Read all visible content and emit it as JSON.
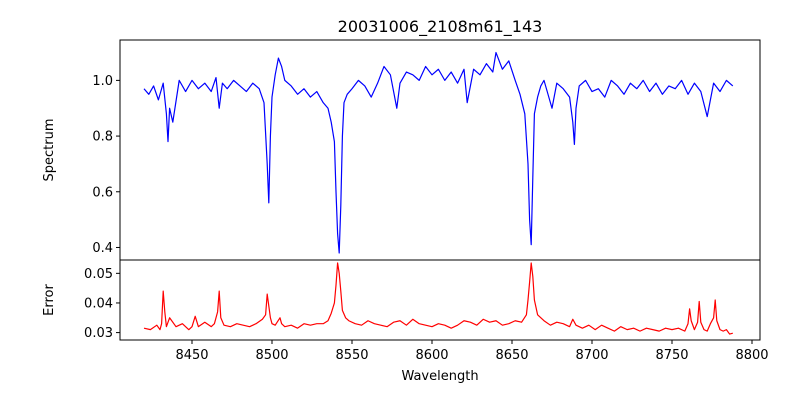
{
  "chart_data": [
    {
      "type": "line",
      "title": "20031006_2108m61_143",
      "ylabel": "Spectrum",
      "xlim": [
        8405,
        8805
      ],
      "ylim": [
        0.355,
        1.145
      ],
      "yticks": [
        0.4,
        0.6,
        0.8,
        1.0
      ],
      "yticklabels": [
        "0.4",
        "0.6",
        "0.8",
        "1.0"
      ],
      "grid": false,
      "series": [
        {
          "color": "#0000ff",
          "x": [
            8420,
            8423,
            8426,
            8429,
            8432,
            8434,
            8435,
            8436,
            8438,
            8442,
            8446,
            8450,
            8454,
            8458,
            8462,
            8465,
            8467,
            8469,
            8472,
            8476,
            8480,
            8484,
            8488,
            8492,
            8495,
            8497,
            8498,
            8499,
            8500,
            8502,
            8504,
            8506,
            8508,
            8512,
            8516,
            8520,
            8524,
            8528,
            8532,
            8535,
            8537,
            8539,
            8540,
            8541,
            8542,
            8543,
            8544,
            8545,
            8547,
            8550,
            8554,
            8558,
            8562,
            8566,
            8570,
            8574,
            8578,
            8580,
            8584,
            8588,
            8592,
            8596,
            8600,
            8604,
            8608,
            8612,
            8616,
            8620,
            8622,
            8626,
            8630,
            8634,
            8638,
            8640,
            8644,
            8648,
            8652,
            8655,
            8658,
            8660,
            8661,
            8662,
            8663,
            8664,
            8666,
            8668,
            8670,
            8672,
            8675,
            8678,
            8682,
            8686,
            8688,
            8689,
            8690,
            8692,
            8696,
            8700,
            8704,
            8708,
            8712,
            8716,
            8720,
            8724,
            8728,
            8732,
            8736,
            8740,
            8744,
            8748,
            8752,
            8756,
            8760,
            8764,
            8768,
            8772,
            8776,
            8780,
            8784,
            8788
          ],
          "y": [
            0.97,
            0.95,
            0.98,
            0.93,
            0.99,
            0.88,
            0.78,
            0.9,
            0.85,
            1.0,
            0.96,
            1.0,
            0.97,
            0.99,
            0.96,
            1.01,
            0.9,
            0.99,
            0.97,
            1.0,
            0.98,
            0.96,
            0.99,
            0.97,
            0.92,
            0.7,
            0.56,
            0.8,
            0.94,
            1.02,
            1.08,
            1.05,
            1.0,
            0.98,
            0.95,
            0.97,
            0.94,
            0.96,
            0.92,
            0.9,
            0.85,
            0.78,
            0.6,
            0.45,
            0.38,
            0.55,
            0.8,
            0.92,
            0.95,
            0.97,
            1.0,
            0.98,
            0.94,
            0.99,
            1.05,
            1.02,
            0.9,
            0.99,
            1.03,
            1.02,
            1.0,
            1.05,
            1.02,
            1.04,
            1.0,
            1.03,
            0.99,
            1.04,
            0.92,
            1.04,
            1.02,
            1.06,
            1.03,
            1.1,
            1.04,
            1.07,
            1.0,
            0.95,
            0.88,
            0.7,
            0.5,
            0.41,
            0.65,
            0.88,
            0.94,
            0.98,
            1.0,
            0.96,
            0.9,
            0.99,
            0.97,
            0.94,
            0.85,
            0.77,
            0.9,
            0.98,
            1.0,
            0.96,
            0.97,
            0.94,
            1.0,
            0.98,
            0.95,
            0.99,
            0.97,
            1.0,
            0.96,
            0.99,
            0.95,
            0.98,
            0.97,
            1.0,
            0.95,
            0.99,
            0.96,
            0.87,
            0.99,
            0.96,
            1.0,
            0.98
          ]
        }
      ]
    },
    {
      "type": "line",
      "xlabel": "Wavelength",
      "ylabel": "Error",
      "xlim": [
        8405,
        8805
      ],
      "ylim": [
        0.0275,
        0.0545
      ],
      "xticks": [
        8450,
        8500,
        8550,
        8600,
        8650,
        8700,
        8750,
        8800
      ],
      "xticklabels": [
        "8450",
        "8500",
        "8550",
        "8600",
        "8650",
        "8700",
        "8750",
        "8800"
      ],
      "yticks": [
        0.03,
        0.04,
        0.05
      ],
      "yticklabels": [
        "0.03",
        "0.04",
        "0.05"
      ],
      "grid": false,
      "series": [
        {
          "color": "#ff0000",
          "x": [
            8420,
            8424,
            8428,
            8430,
            8431,
            8432,
            8433,
            8434,
            8436,
            8440,
            8444,
            8448,
            8450,
            8452,
            8454,
            8458,
            8462,
            8464,
            8466,
            8467,
            8468,
            8470,
            8474,
            8478,
            8482,
            8486,
            8490,
            8494,
            8496,
            8497,
            8498,
            8499,
            8500,
            8502,
            8505,
            8506,
            8508,
            8512,
            8516,
            8520,
            8524,
            8528,
            8532,
            8535,
            8537,
            8539,
            8540,
            8541,
            8542,
            8543,
            8544,
            8546,
            8548,
            8552,
            8556,
            8560,
            8564,
            8568,
            8572,
            8576,
            8580,
            8584,
            8588,
            8592,
            8596,
            8600,
            8604,
            8608,
            8612,
            8616,
            8620,
            8624,
            8628,
            8632,
            8636,
            8640,
            8644,
            8648,
            8652,
            8656,
            8659,
            8660,
            8661,
            8662,
            8663,
            8664,
            8666,
            8670,
            8674,
            8678,
            8682,
            8686,
            8688,
            8690,
            8694,
            8698,
            8702,
            8706,
            8710,
            8714,
            8718,
            8722,
            8726,
            8730,
            8734,
            8738,
            8742,
            8746,
            8750,
            8754,
            8758,
            8760,
            8761,
            8762,
            8764,
            8766,
            8767,
            8768,
            8770,
            8772,
            8774,
            8776,
            8777,
            8778,
            8780,
            8782,
            8784,
            8786,
            8788
          ],
          "y": [
            0.0315,
            0.031,
            0.0325,
            0.031,
            0.033,
            0.044,
            0.037,
            0.032,
            0.035,
            0.032,
            0.033,
            0.031,
            0.032,
            0.0355,
            0.032,
            0.0335,
            0.032,
            0.033,
            0.037,
            0.044,
            0.035,
            0.0325,
            0.032,
            0.033,
            0.0325,
            0.032,
            0.033,
            0.0345,
            0.036,
            0.043,
            0.039,
            0.035,
            0.033,
            0.0325,
            0.035,
            0.033,
            0.032,
            0.0325,
            0.0315,
            0.033,
            0.0325,
            0.033,
            0.033,
            0.034,
            0.0365,
            0.04,
            0.046,
            0.0535,
            0.05,
            0.044,
            0.0375,
            0.035,
            0.034,
            0.033,
            0.0325,
            0.034,
            0.033,
            0.0325,
            0.032,
            0.0335,
            0.034,
            0.0325,
            0.0345,
            0.033,
            0.0325,
            0.032,
            0.033,
            0.0325,
            0.0315,
            0.0325,
            0.034,
            0.0335,
            0.0325,
            0.0345,
            0.0335,
            0.034,
            0.0325,
            0.033,
            0.034,
            0.0335,
            0.036,
            0.041,
            0.047,
            0.0535,
            0.049,
            0.041,
            0.036,
            0.034,
            0.0325,
            0.0335,
            0.033,
            0.032,
            0.0345,
            0.0325,
            0.0315,
            0.0325,
            0.031,
            0.0325,
            0.0315,
            0.0305,
            0.032,
            0.031,
            0.0315,
            0.0305,
            0.0315,
            0.031,
            0.0305,
            0.0315,
            0.031,
            0.0315,
            0.0305,
            0.033,
            0.038,
            0.034,
            0.031,
            0.0335,
            0.0405,
            0.0335,
            0.031,
            0.0305,
            0.033,
            0.035,
            0.041,
            0.034,
            0.031,
            0.0305,
            0.031,
            0.0295,
            0.0298
          ]
        }
      ]
    }
  ]
}
